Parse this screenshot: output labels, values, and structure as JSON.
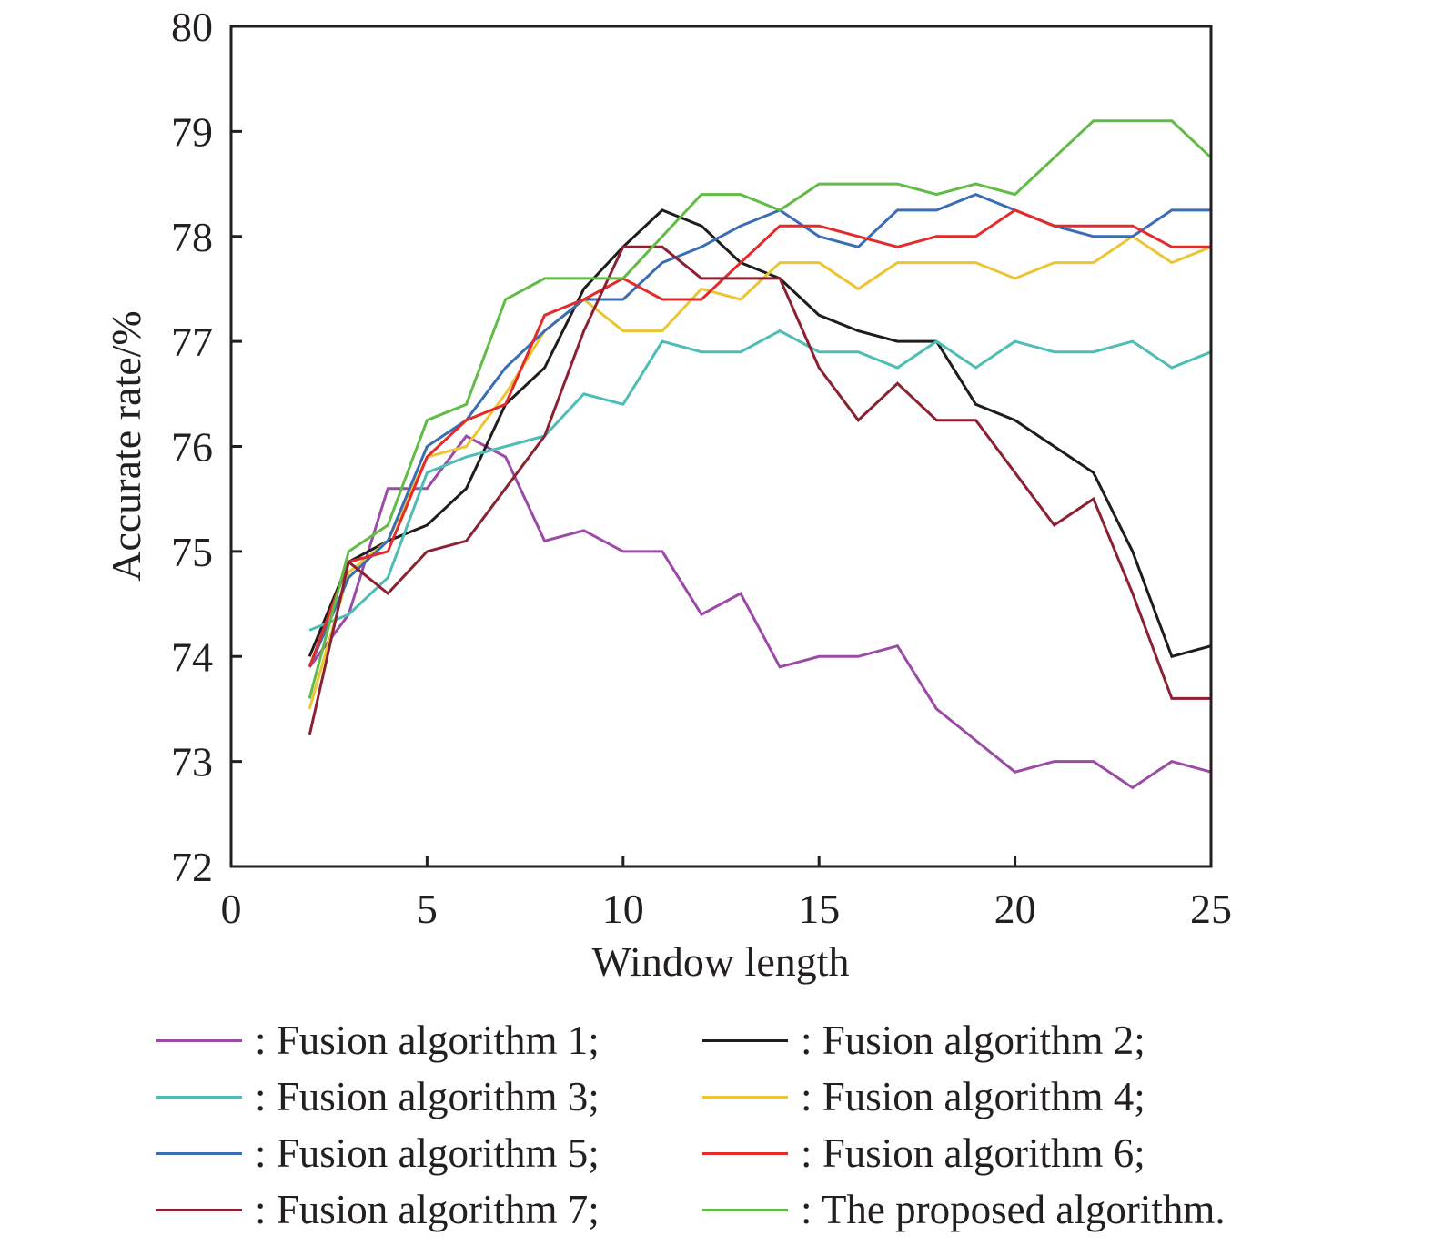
{
  "chart_data": {
    "type": "line",
    "title": "",
    "xlabel": "Window length",
    "ylabel": "Accurate rate/%",
    "xlim": [
      0,
      25
    ],
    "ylim": [
      72,
      80
    ],
    "xticks": [
      0,
      5,
      10,
      15,
      20,
      25
    ],
    "yticks": [
      72,
      73,
      74,
      75,
      76,
      77,
      78,
      79,
      80
    ],
    "grid": false,
    "legend_placement": "bottom",
    "x": [
      2,
      3,
      4,
      5,
      6,
      7,
      8,
      9,
      10,
      11,
      12,
      13,
      14,
      15,
      16,
      17,
      18,
      19,
      20,
      21,
      22,
      23,
      24,
      25
    ],
    "series": [
      {
        "name": "Fusion algorithm 1",
        "label": ": Fusion algorithm 1;",
        "color": "#9b4ba6",
        "values": [
          73.9,
          74.4,
          75.6,
          75.6,
          76.1,
          75.9,
          75.1,
          75.2,
          75.0,
          75.0,
          74.4,
          74.6,
          73.9,
          74.0,
          74.0,
          74.1,
          73.5,
          73.2,
          72.9,
          73.0,
          73.0,
          72.75,
          73.0,
          72.9
        ]
      },
      {
        "name": "Fusion algorithm 2",
        "label": ": Fusion algorithm 2;",
        "color": "#1d1d1b",
        "values": [
          74.0,
          74.9,
          75.1,
          75.25,
          75.6,
          76.4,
          76.75,
          77.5,
          77.9,
          78.25,
          78.1,
          77.75,
          77.6,
          77.25,
          77.1,
          77.0,
          77.0,
          76.4,
          76.25,
          76.0,
          75.75,
          75.0,
          74.0,
          74.1
        ]
      },
      {
        "name": "Fusion algorithm 3",
        "label": ": Fusion algorithm 3;",
        "color": "#4dbdb5",
        "values": [
          74.25,
          74.4,
          74.75,
          75.75,
          75.9,
          76.0,
          76.1,
          76.5,
          76.4,
          77.0,
          76.9,
          76.9,
          77.1,
          76.9,
          76.9,
          76.75,
          77.0,
          76.75,
          77.0,
          76.9,
          76.9,
          77.0,
          76.75,
          76.9
        ]
      },
      {
        "name": "Fusion algorithm 4",
        "label": ": Fusion algorithm 4;",
        "color": "#ecc535",
        "values": [
          73.5,
          74.8,
          75.1,
          75.9,
          76.0,
          76.5,
          77.1,
          77.4,
          77.1,
          77.1,
          77.5,
          77.4,
          77.75,
          77.75,
          77.5,
          77.75,
          77.75,
          77.75,
          77.6,
          77.75,
          77.75,
          78.0,
          77.75,
          77.9
        ]
      },
      {
        "name": "Fusion algorithm 5",
        "label": ": Fusion algorithm 5;",
        "color": "#3a6db5",
        "values": [
          73.9,
          74.75,
          75.1,
          76.0,
          76.25,
          76.75,
          77.1,
          77.4,
          77.4,
          77.75,
          77.9,
          78.1,
          78.25,
          78.0,
          77.9,
          78.25,
          78.25,
          78.4,
          78.25,
          78.1,
          78.0,
          78.0,
          78.25,
          78.25
        ]
      },
      {
        "name": "Fusion algorithm 6",
        "label": ": Fusion algorithm 6;",
        "color": "#e32b2c",
        "values": [
          73.9,
          74.9,
          75.0,
          75.9,
          76.25,
          76.4,
          77.25,
          77.4,
          77.6,
          77.4,
          77.4,
          77.75,
          78.1,
          78.1,
          78.0,
          77.9,
          78.0,
          78.0,
          78.25,
          78.1,
          78.1,
          78.1,
          77.9,
          77.9
        ]
      },
      {
        "name": "Fusion algorithm 7",
        "label": ": Fusion algorithm 7;",
        "color": "#8a2233",
        "values": [
          73.25,
          74.9,
          74.6,
          75.0,
          75.1,
          75.6,
          76.1,
          77.1,
          77.9,
          77.9,
          77.6,
          77.6,
          77.6,
          76.75,
          76.25,
          76.6,
          76.25,
          76.25,
          75.75,
          75.25,
          75.5,
          74.6,
          73.6,
          73.6
        ]
      },
      {
        "name": "The proposed algorithm",
        "label": ": The proposed algorithm.",
        "color": "#62bb46",
        "values": [
          73.6,
          75.0,
          75.25,
          76.25,
          76.4,
          77.4,
          77.6,
          77.6,
          77.6,
          78.0,
          78.4,
          78.4,
          78.25,
          78.5,
          78.5,
          78.5,
          78.4,
          78.5,
          78.4,
          78.75,
          79.1,
          79.1,
          79.1,
          78.75
        ]
      }
    ]
  }
}
